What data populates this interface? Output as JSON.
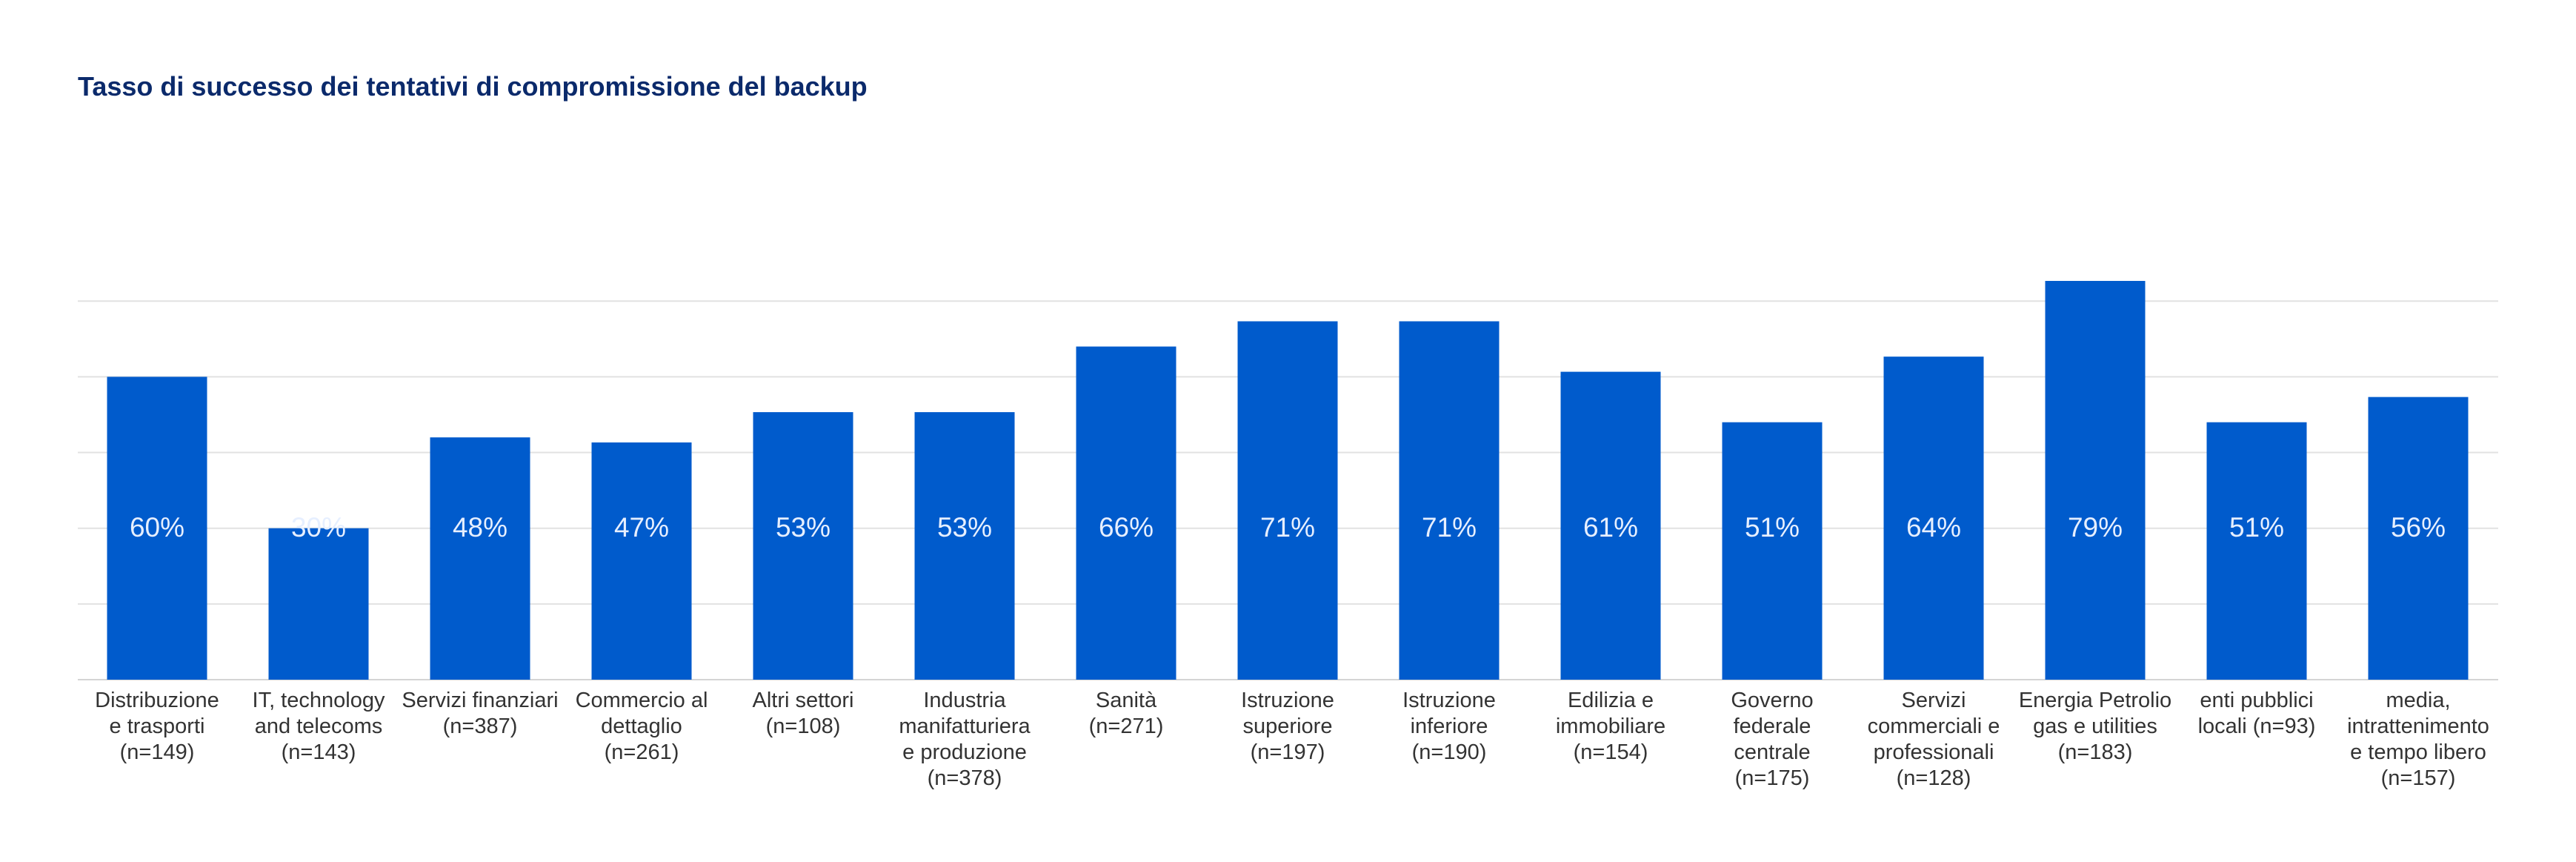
{
  "title": "Tasso di successo dei tentativi di compromissione del backup",
  "chart_data": {
    "type": "bar",
    "title": "Tasso di successo dei tentativi di compromissione del backup",
    "xlabel": "",
    "ylabel": "",
    "ylim": [
      0,
      75
    ],
    "grid": true,
    "bar_color": "#005bcc",
    "categories": [
      [
        "Distribuzione",
        "e trasporti",
        "(n=149)"
      ],
      [
        "IT, technology",
        "and telecoms",
        "(n=143)"
      ],
      [
        "Servizi finanziari",
        "(n=387)"
      ],
      [
        "Commercio al",
        "dettaglio",
        "(n=261)"
      ],
      [
        "Altri settori",
        "(n=108)"
      ],
      [
        "Industria",
        "manifatturiera",
        "e produzione",
        "(n=378)"
      ],
      [
        "Sanità",
        "(n=271)"
      ],
      [
        "Istruzione",
        "superiore",
        "(n=197)"
      ],
      [
        "Istruzione",
        "inferiore",
        "(n=190)"
      ],
      [
        "Edilizia e",
        "immobiliare",
        "(n=154)"
      ],
      [
        "Governo",
        "federale",
        "centrale",
        "(n=175)"
      ],
      [
        "Servizi",
        "commerciali e",
        "professionali",
        "(n=128)"
      ],
      [
        "Energia Petrolio",
        "gas e utilities",
        "(n=183)"
      ],
      [
        "enti pubblici",
        "locali (n=93)"
      ],
      [
        "media,",
        "intrattenimento",
        "e tempo libero",
        "(n=157)"
      ]
    ],
    "values": [
      60,
      30,
      48,
      47,
      53,
      53,
      66,
      71,
      71,
      61,
      51,
      64,
      79,
      51,
      56
    ],
    "value_labels": [
      "60%",
      "30%",
      "48%",
      "47%",
      "53%",
      "53%",
      "66%",
      "71%",
      "71%",
      "61%",
      "51%",
      "64%",
      "79%",
      "51%",
      "56%"
    ]
  }
}
